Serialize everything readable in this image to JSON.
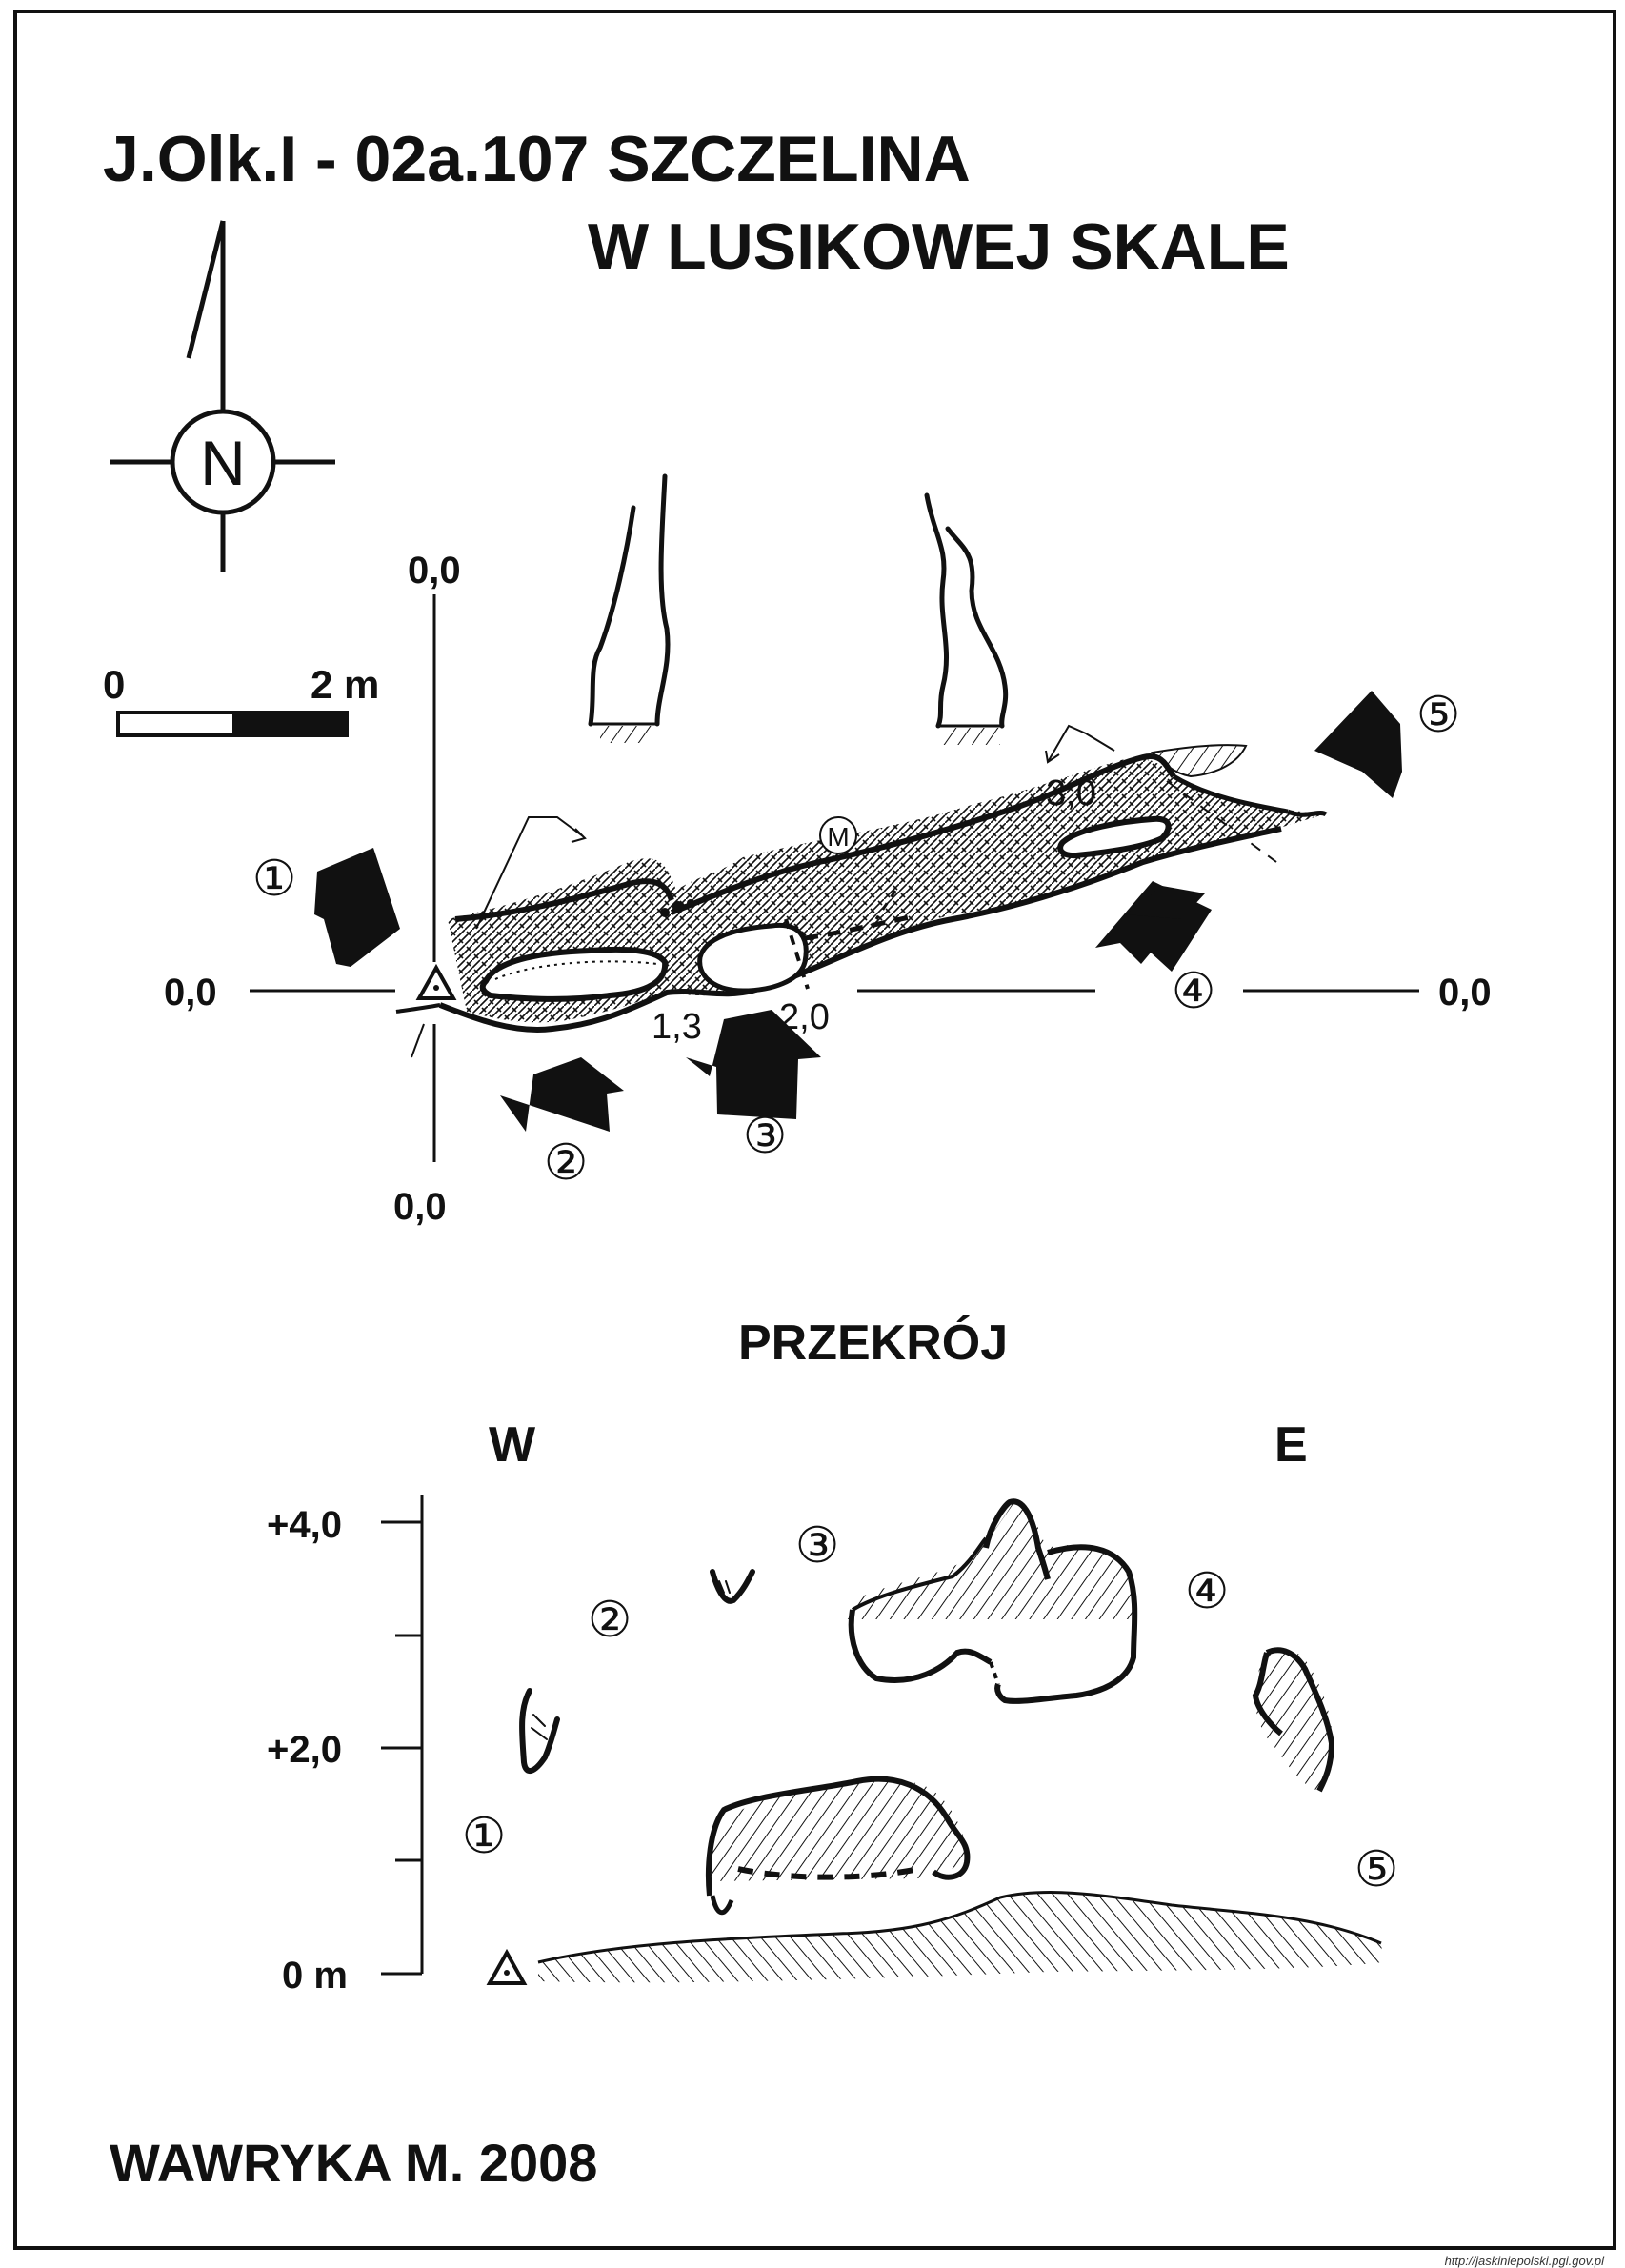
{
  "title": {
    "line1": "J.Olk.I - 02a.107  SZCZELINA",
    "line2": "W LUSIKOWEJ SKALE"
  },
  "north": {
    "letter": "N",
    "icon": "north-arrow-icon"
  },
  "scale_bar": {
    "start": "0",
    "end": "2 m"
  },
  "plan": {
    "axis_top": "0,0",
    "axis_bottom": "0,0",
    "axis_left": "0,0",
    "axis_right": "0,0",
    "depth_1": "1,3",
    "depth_2": "2,0",
    "depth_3": "3,0",
    "marker": "M",
    "views": [
      "①",
      "②",
      "③",
      "④",
      "⑤"
    ]
  },
  "section": {
    "title": "PRZEKRÓJ",
    "west": "W",
    "east": "E",
    "y_labels": [
      "+4,0",
      "+2,0",
      "0 m"
    ],
    "views": [
      "①",
      "②",
      "③",
      "④",
      "⑤"
    ]
  },
  "author": "WAWRYKA M. 2008",
  "source_url": "http://jaskiniepolski.pgi.gov.pl"
}
